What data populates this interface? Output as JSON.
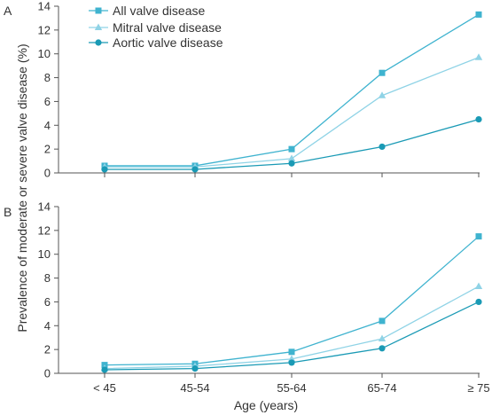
{
  "chart_data": {
    "type": "line",
    "xlabel": "Age (years)",
    "ylabel": "Prevalence of moderate or severe valve disease (%)",
    "categories": [
      "< 45",
      "45-54",
      "55-64",
      "65-74",
      "≥ 75"
    ],
    "ylim": [
      0,
      14
    ],
    "yticks": [
      0,
      2,
      4,
      6,
      8,
      10,
      12,
      14
    ],
    "grid": false,
    "legend_position": "top-left",
    "series_styles": [
      {
        "name": "All valve disease",
        "color": "#3fb3cf",
        "marker": "square"
      },
      {
        "name": "Mitral valve disease",
        "color": "#8fd3e6",
        "marker": "triangle"
      },
      {
        "name": "Aortic valve disease",
        "color": "#1a9ab5",
        "marker": "circle"
      }
    ],
    "panels": [
      {
        "label": "A",
        "series": [
          {
            "name": "All valve disease",
            "values": [
              0.6,
              0.6,
              2.0,
              8.4,
              13.3
            ]
          },
          {
            "name": "Mitral valve disease",
            "values": [
              0.5,
              0.5,
              1.2,
              6.5,
              9.7
            ]
          },
          {
            "name": "Aortic valve disease",
            "values": [
              0.3,
              0.3,
              0.8,
              2.2,
              4.5
            ]
          }
        ]
      },
      {
        "label": "B",
        "series": [
          {
            "name": "All valve disease",
            "values": [
              0.7,
              0.8,
              1.8,
              4.4,
              11.5
            ]
          },
          {
            "name": "Mitral valve disease",
            "values": [
              0.4,
              0.6,
              1.2,
              2.9,
              7.3
            ]
          },
          {
            "name": "Aortic valve disease",
            "values": [
              0.3,
              0.4,
              0.9,
              2.1,
              6.0
            ]
          }
        ]
      }
    ]
  }
}
